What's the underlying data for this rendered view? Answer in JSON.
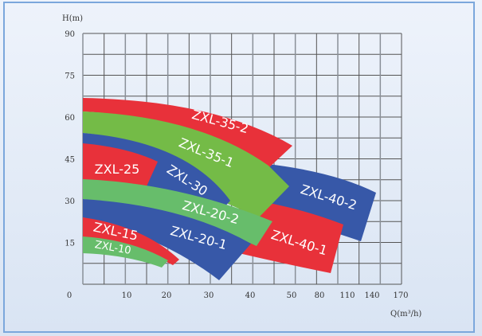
{
  "chart_data": {
    "type": "area",
    "title": "",
    "ylabel": "H(m)",
    "xlabel": "Q(m³/h)",
    "y_ticks": [
      "90",
      "75",
      "60",
      "45",
      "30",
      "15"
    ],
    "x_ticks": [
      "0",
      "10",
      "20",
      "30",
      "40",
      "50",
      "80",
      "110",
      "140",
      "170"
    ],
    "ylim": [
      0,
      90
    ],
    "grid": true,
    "colors": {
      "red": "#e8313a",
      "green": "#74bb47",
      "light_green": "#67bd6b",
      "blue": "#3758a8"
    },
    "regions": [
      {
        "name": "ZXL-40-2",
        "color": "blue"
      },
      {
        "name": "ZXL-40-1",
        "color": "red"
      },
      {
        "name": "ZXL-35-2",
        "color": "red"
      },
      {
        "name": "ZXL-35-1",
        "color": "green"
      },
      {
        "name": "ZXL-30",
        "color": "blue"
      },
      {
        "name": "ZXL-25",
        "color": "red"
      },
      {
        "name": "ZXL-20-2",
        "color": "light_green"
      },
      {
        "name": "ZXL-20-1",
        "color": "blue"
      },
      {
        "name": "ZXL-15",
        "color": "red"
      },
      {
        "name": "ZXL-10",
        "color": "light_green"
      }
    ]
  }
}
